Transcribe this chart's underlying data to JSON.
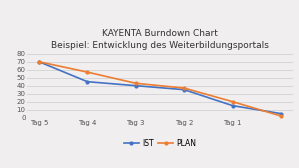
{
  "title_line1": "KAYENTA Burndown Chart",
  "title_line2": "Beispiel: Entwicklung des Weiterbildungsportals",
  "x_labels": [
    "Tag 5",
    "Tag 4",
    "Tag 3",
    "Tag 2",
    "Tag 1",
    ""
  ],
  "x_values": [
    0,
    1,
    2,
    3,
    4,
    5
  ],
  "ist_values": [
    70,
    45,
    40,
    35,
    15,
    5
  ],
  "plan_values": [
    70,
    57,
    43,
    37,
    20,
    2
  ],
  "ist_color": "#4472c4",
  "plan_color": "#ed7d31",
  "ylim": [
    0,
    80
  ],
  "yticks": [
    0,
    10,
    20,
    30,
    40,
    50,
    60,
    70,
    80
  ],
  "legend_ist": "IST",
  "legend_plan": "PLAN",
  "background_color": "#f0eeee",
  "plot_bg_color": "#f0eeee",
  "title_fontsize": 6.5,
  "tick_fontsize": 5.0,
  "legend_fontsize": 5.5,
  "line_width": 1.2,
  "marker": "o",
  "marker_size": 2.0
}
